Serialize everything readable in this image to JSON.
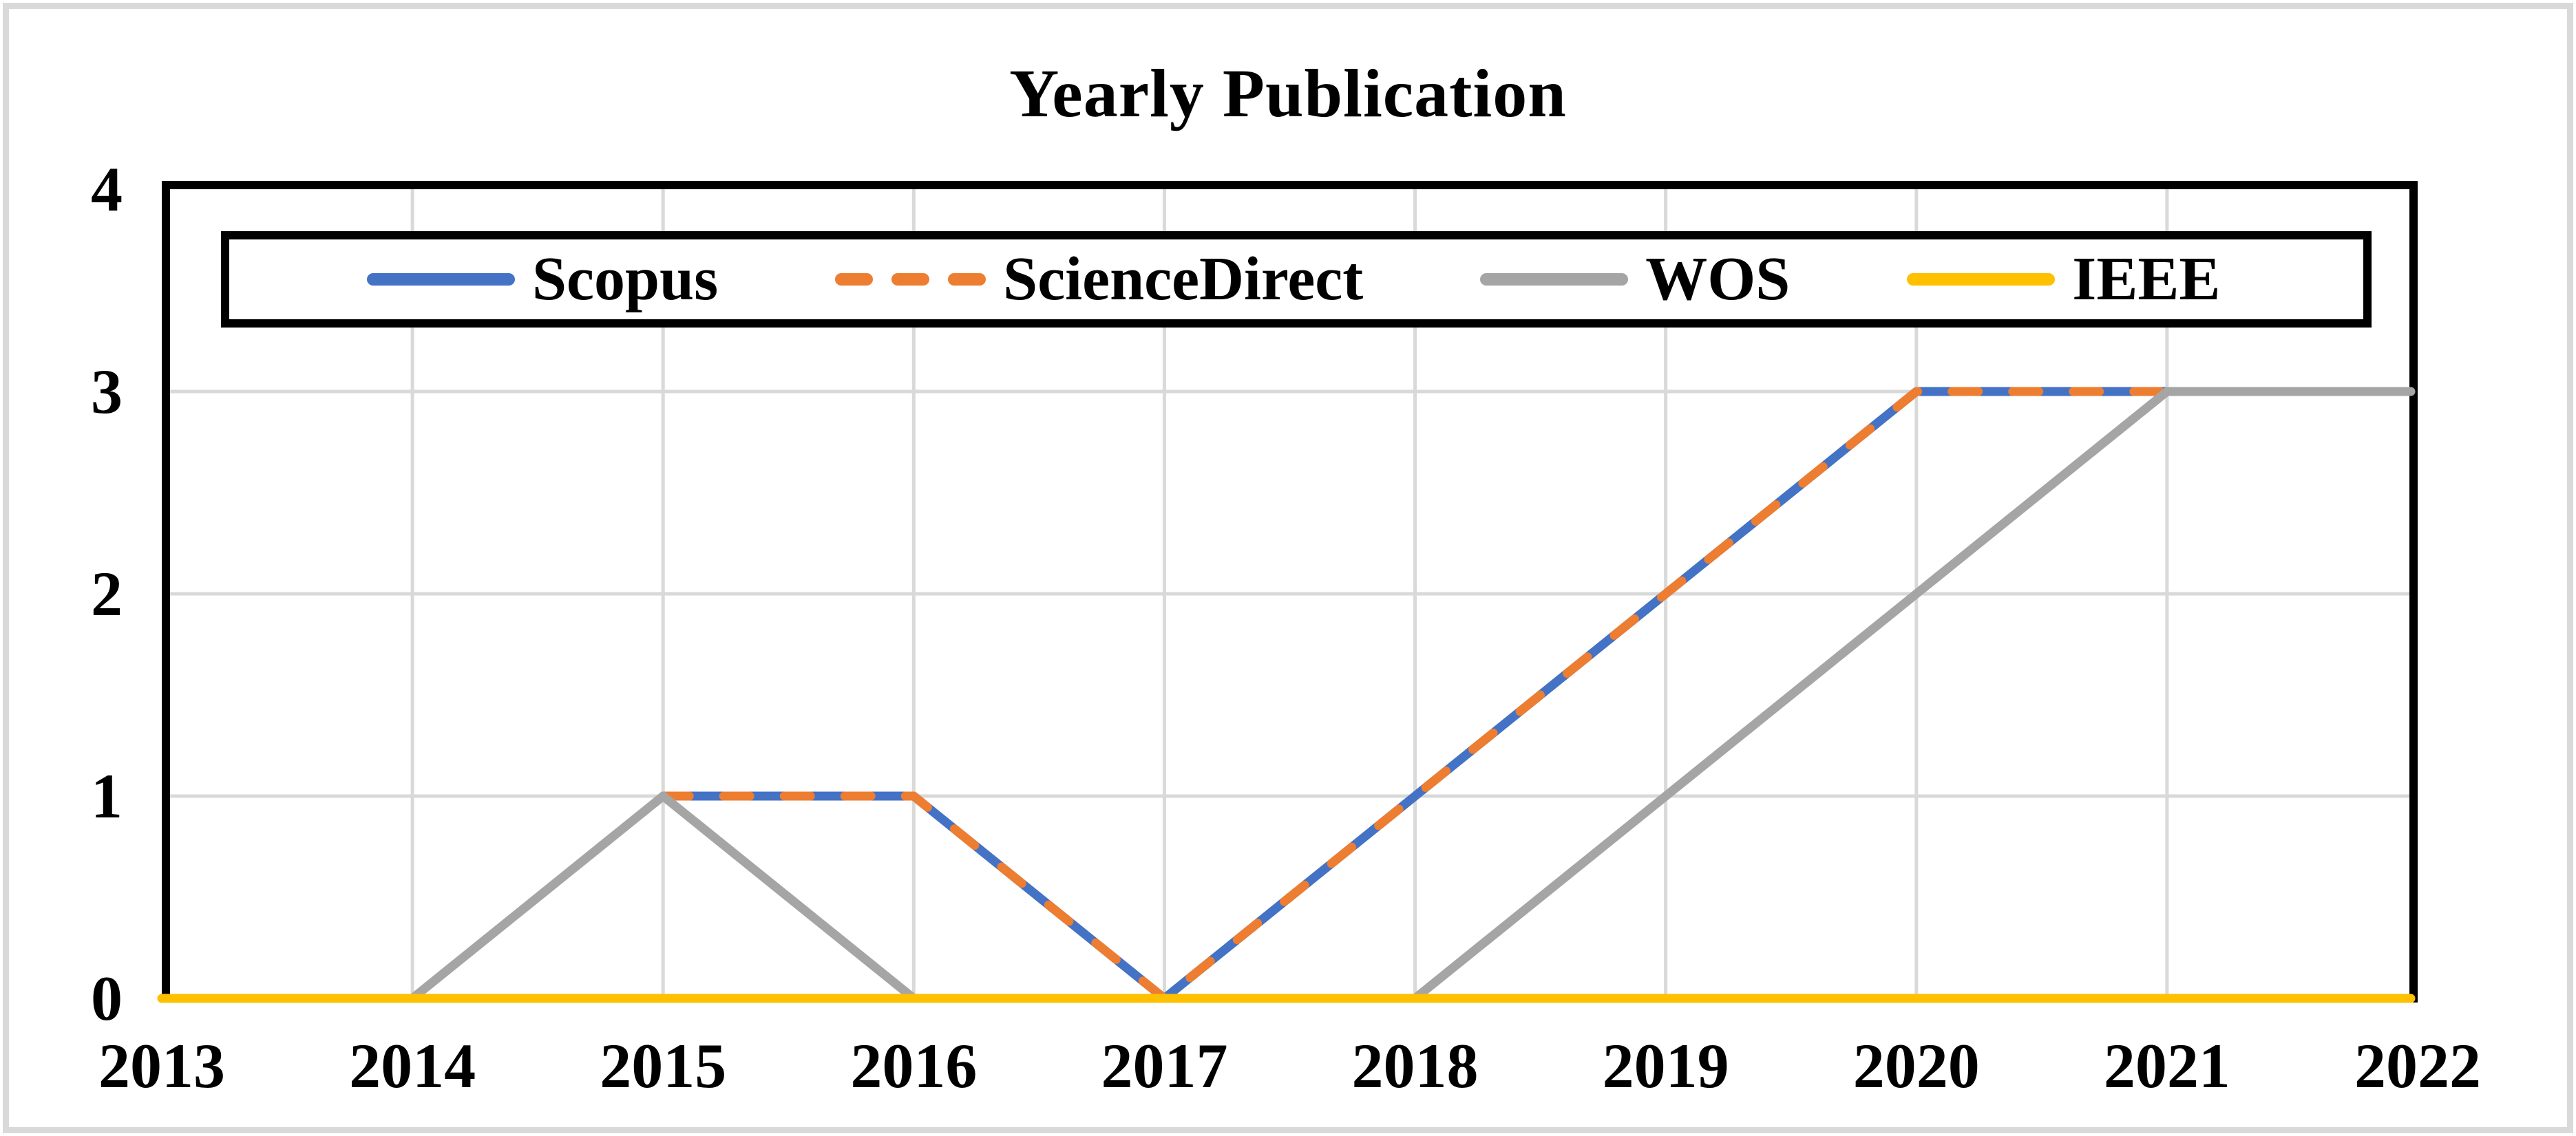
{
  "chart_data": {
    "type": "line",
    "title": "Yearly Publication",
    "xlabel": "",
    "ylabel": "",
    "categories": [
      "2013",
      "2014",
      "2015",
      "2016",
      "2017",
      "2018",
      "2019",
      "2020",
      "2021",
      "2022"
    ],
    "y_ticks": [
      0,
      1,
      2,
      3,
      4
    ],
    "ylim": [
      0,
      4
    ],
    "grid": true,
    "legend_position": "top-inside",
    "series": [
      {
        "name": "Scopus",
        "color": "#4472C4",
        "style": "solid",
        "values": [
          null,
          null,
          1,
          1,
          0,
          1,
          2,
          3,
          3,
          null
        ]
      },
      {
        "name": "ScienceDirect",
        "color": "#ED7D31",
        "style": "dashed",
        "values": [
          null,
          null,
          1,
          1,
          0,
          1,
          2,
          3,
          3,
          null
        ]
      },
      {
        "name": "WOS",
        "color": "#A5A5A5",
        "style": "solid",
        "values": [
          null,
          0,
          1,
          0,
          0,
          0,
          1,
          2,
          3,
          3
        ]
      },
      {
        "name": "IEEE",
        "color": "#FFC000",
        "style": "solid",
        "values": [
          0,
          0,
          0,
          0,
          0,
          0,
          0,
          0,
          0,
          0
        ]
      }
    ]
  },
  "colors": {
    "gridline": "#D9D9D9",
    "plot_border": "#000000",
    "figure_frame": "#D9D9D9",
    "background": "#FFFFFF",
    "text": "#000000"
  }
}
